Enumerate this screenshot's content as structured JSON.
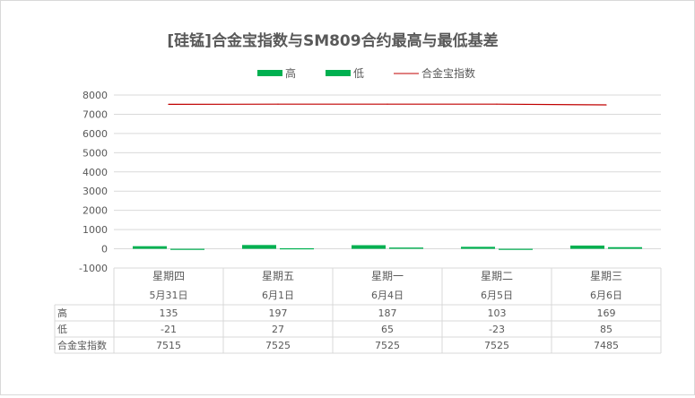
{
  "chart_data": {
    "type": "bar",
    "title": "[硅锰]合金宝指数与SM809合约最高与最低基差",
    "categories": [
      {
        "weekday": "星期四",
        "date": "5月31日"
      },
      {
        "weekday": "星期五",
        "date": "6月1日"
      },
      {
        "weekday": "星期一",
        "date": "6月4日"
      },
      {
        "weekday": "星期二",
        "date": "6月5日"
      },
      {
        "weekday": "星期三",
        "date": "6月6日"
      }
    ],
    "series": [
      {
        "name": "高",
        "type": "bar",
        "values": [
          135,
          197,
          187,
          103,
          169
        ],
        "labels": [
          "135",
          "197",
          "187",
          "103",
          "169"
        ]
      },
      {
        "name": "低",
        "type": "bar",
        "values": [
          -21,
          27,
          65,
          -23,
          85
        ],
        "labels": [
          "-21",
          "27",
          "65",
          "-23",
          "85"
        ]
      },
      {
        "name": "合金宝指数",
        "type": "line",
        "values": [
          7515,
          7525,
          7525,
          7525,
          7485
        ],
        "labels": [
          "7515",
          "7525",
          "7525",
          "7525",
          "7485"
        ]
      }
    ],
    "y_ticks": [
      "-1000",
      "0",
      "1000",
      "2000",
      "3000",
      "4000",
      "5000",
      "6000",
      "7000",
      "8000"
    ],
    "ylim": [
      -1000,
      8000
    ],
    "ytick_step": 1000,
    "legend_position": "top-center",
    "grid": true,
    "data_table": true,
    "colors": {
      "bar": "#00b050",
      "line": "#c00000",
      "grid": "#d9d9d9",
      "text": "#595959"
    }
  }
}
